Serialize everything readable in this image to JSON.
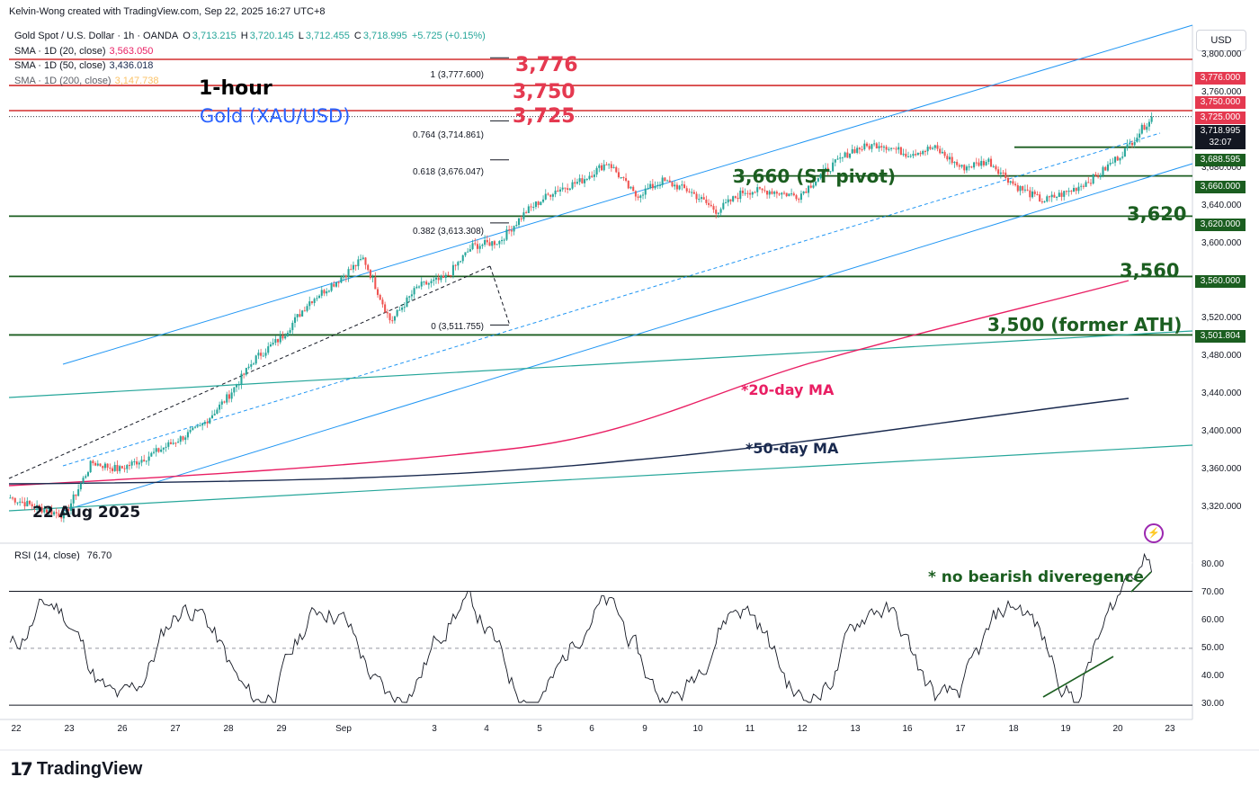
{
  "header": {
    "credit": "Kelvin-Wong created with TradingView.com, Sep 22, 2025 16:27 UTC+8"
  },
  "legend": {
    "symbol": "Gold Spot / U.S. Dollar · 1h · OANDA",
    "o_label": "O",
    "o": "3,713.215",
    "h_label": "H",
    "h": "3,720.145",
    "l_label": "L",
    "l": "3,712.455",
    "c_label": "C",
    "c": "3,718.995",
    "chg": "+5.725 (+0.15%)",
    "sma20_label": "SMA · 1D (20, close)",
    "sma20": "3,563.050",
    "sma50_label": "SMA · 1D (50, close)",
    "sma50": "3,436.018",
    "sma200_label": "SMA · 1D (200, close)",
    "sma200": "3,147.738"
  },
  "annotations": {
    "timeframe": "1-hour",
    "instrument": "Gold (XAU/USD)",
    "r3776": "3,776",
    "r3750": "3,750",
    "r3725": "3,725",
    "st_pivot": "3,660 (ST pivot)",
    "s3620": "3,620",
    "s3560": "3,560",
    "s3500": "3,500 (former ATH)",
    "ma20": "*20-day MA",
    "ma50": "*50-day MA",
    "start_date": "22 Aug 2025",
    "rsi_note": "* no bearish diveregence"
  },
  "fib": {
    "f1": "1 (3,777.600)",
    "f764": "0.764 (3,714.861)",
    "f618": "0.618 (3,676.047)",
    "f382": "0.382 (3,613.308)",
    "f0": "0 (3,511.755)"
  },
  "price_scale": {
    "currency": "USD",
    "ticks": [
      "3,800.000",
      "3,760.000",
      "3,680.000",
      "3,640.000",
      "3,600.000",
      "3,520.000",
      "3,480.000",
      "3,440.000",
      "3,400.000",
      "3,360.000",
      "3,320.000"
    ],
    "labels": {
      "l3776": "3,776.000",
      "l3750": "3,750.000",
      "l3725": "3,725.000",
      "last": "3,718.995",
      "countdown": "32:07",
      "l3688": "3,688.595",
      "l3660": "3,660.000",
      "l3620": "3,620.000",
      "l3560": "3,560.000",
      "l3501": "3,501.804"
    }
  },
  "rsi": {
    "label": "RSI (14, close)",
    "value": "76.70",
    "ticks": [
      "80.00",
      "70.00",
      "60.00",
      "50.00",
      "40.00",
      "30.00"
    ]
  },
  "time_axis": [
    "22",
    "23",
    "26",
    "27",
    "28",
    "29",
    "Sep",
    "3",
    "4",
    "5",
    "6",
    "9",
    "10",
    "11",
    "12",
    "13",
    "16",
    "17",
    "18",
    "19",
    "20",
    "23"
  ],
  "logo": {
    "text": "TradingView"
  },
  "colors": {
    "support": "#1b5e20",
    "resistance": "#d32f2f",
    "sma20": "#e91e63",
    "sma50": "#1a2a4f",
    "channel": "#2196f3",
    "trend": "#26a69a",
    "up": "#26a69a",
    "down": "#ef5350",
    "instrument": "#2962ff"
  },
  "chart_data": {
    "type": "candlestick",
    "title": "Gold Spot / U.S. Dollar · 1h · OANDA",
    "x_range": [
      "22 Aug 2025",
      "22 Sep 2025"
    ],
    "ylim": [
      3300,
      3810
    ],
    "path_points": [
      {
        "t": "22 Aug",
        "price": 3340
      },
      {
        "t": "22 Aug",
        "price": 3330
      },
      {
        "t": "22 Aug",
        "price": 3322
      },
      {
        "t": "22 Aug",
        "price": 3375
      },
      {
        "t": "26 Aug",
        "price": 3368
      },
      {
        "t": "27 Aug",
        "price": 3380
      },
      {
        "t": "28 Aug",
        "price": 3395
      },
      {
        "t": "29 Aug",
        "price": 3410
      },
      {
        "t": "1 Sep",
        "price": 3440
      },
      {
        "t": "2 Sep",
        "price": 3478
      },
      {
        "t": "2 Sep",
        "price": 3500
      },
      {
        "t": "3 Sep",
        "price": 3535
      },
      {
        "t": "3 Sep",
        "price": 3555
      },
      {
        "t": "4 Sep",
        "price": 3578
      },
      {
        "t": "4 Sep",
        "price": 3515
      },
      {
        "t": "5 Sep",
        "price": 3550
      },
      {
        "t": "5 Sep",
        "price": 3558
      },
      {
        "t": "5 Sep",
        "price": 3590
      },
      {
        "t": "5 Sep",
        "price": 3595
      },
      {
        "t": "8 Sep",
        "price": 3625
      },
      {
        "t": "8 Sep",
        "price": 3645
      },
      {
        "t": "9 Sep",
        "price": 3655
      },
      {
        "t": "9 Sep",
        "price": 3674
      },
      {
        "t": "10 Sep",
        "price": 3640
      },
      {
        "t": "11 Sep",
        "price": 3655
      },
      {
        "t": "11 Sep",
        "price": 3645
      },
      {
        "t": "12 Sep",
        "price": 3625
      },
      {
        "t": "12 Sep",
        "price": 3645
      },
      {
        "t": "15 Sep",
        "price": 3645
      },
      {
        "t": "15 Sep",
        "price": 3640
      },
      {
        "t": "16 Sep",
        "price": 3665
      },
      {
        "t": "16 Sep",
        "price": 3686
      },
      {
        "t": "17 Sep",
        "price": 3692
      },
      {
        "t": "17 Sep",
        "price": 3682
      },
      {
        "t": "17 Sep",
        "price": 3688
      },
      {
        "t": "18 Sep",
        "price": 3668
      },
      {
        "t": "18 Sep",
        "price": 3675
      },
      {
        "t": "18 Sep",
        "price": 3650
      },
      {
        "t": "19 Sep",
        "price": 3635
      },
      {
        "t": "19 Sep",
        "price": 3645
      },
      {
        "t": "20 Sep",
        "price": 3660
      },
      {
        "t": "22 Sep",
        "price": 3685
      },
      {
        "t": "22 Sep",
        "price": 3718.995
      }
    ],
    "series": [
      {
        "name": "SMA · 1D (20, close)",
        "last": 3563.05
      },
      {
        "name": "SMA · 1D (50, close)",
        "last": 3436.018
      },
      {
        "name": "SMA · 1D (200, close)",
        "last": 3147.738
      }
    ],
    "horizontal_levels": [
      3776,
      3750,
      3725,
      3688.595,
      3660,
      3620,
      3560,
      3501.804
    ],
    "fibonacci": [
      {
        "level": 1,
        "price": 3777.6
      },
      {
        "level": 0.764,
        "price": 3714.861
      },
      {
        "level": 0.618,
        "price": 3676.047
      },
      {
        "level": 0.382,
        "price": 3613.308
      },
      {
        "level": 0,
        "price": 3511.755
      }
    ],
    "rsi": {
      "length": 14,
      "last": 76.7,
      "overbought": 70,
      "oversold": 30,
      "ylim": [
        25,
        85
      ]
    }
  }
}
